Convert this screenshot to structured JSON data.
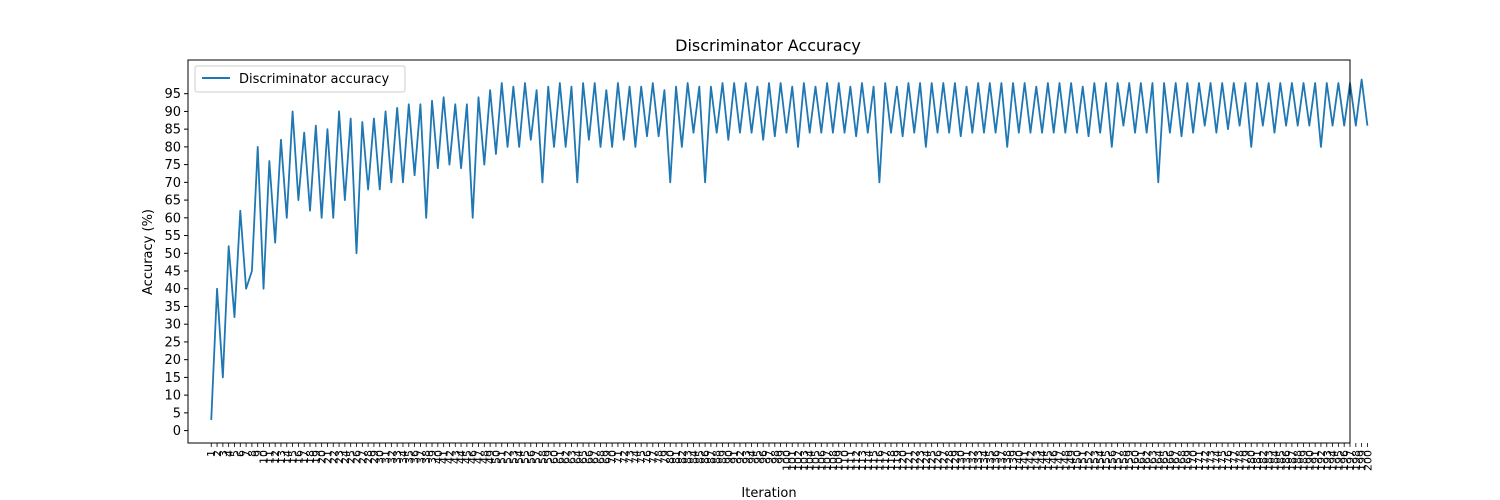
{
  "chart_data": {
    "type": "line",
    "title": "Discriminator Accuracy",
    "xlabel": "Iteration",
    "ylabel": "Accuracy (%)",
    "ylim": [
      -3.5,
      104.5
    ],
    "xlim": [
      -4,
      196
    ],
    "grid": false,
    "legend_position": "top-left",
    "yticks": [
      0,
      5,
      10,
      15,
      20,
      25,
      30,
      35,
      40,
      45,
      50,
      55,
      60,
      65,
      70,
      75,
      80,
      85,
      90,
      95
    ],
    "x_tick_labels_note": "one tick per iteration, labels overlap",
    "series": [
      {
        "name": "Discriminator accuracy",
        "color": "#1f77b4",
        "x": [
          0,
          1,
          2,
          3,
          4,
          5,
          6,
          7,
          8,
          9,
          10,
          11,
          12,
          13,
          14,
          15,
          16,
          17,
          18,
          19,
          20,
          21,
          22,
          23,
          24,
          25,
          26,
          27,
          28,
          29,
          30,
          31,
          32,
          33,
          34,
          35,
          36,
          37,
          38,
          39,
          40,
          41,
          42,
          43,
          44,
          45,
          46,
          47,
          48,
          49,
          50,
          51,
          52,
          53,
          54,
          55,
          56,
          57,
          58,
          59,
          60,
          61,
          62,
          63,
          64,
          65,
          66,
          67,
          68,
          69,
          70,
          71,
          72,
          73,
          74,
          75,
          76,
          77,
          78,
          79,
          80,
          81,
          82,
          83,
          84,
          85,
          86,
          87,
          88,
          89,
          90,
          91,
          92,
          93,
          94,
          95,
          96,
          97,
          98,
          99,
          100,
          101,
          102,
          103,
          104,
          105,
          106,
          107,
          108,
          109,
          110,
          111,
          112,
          113,
          114,
          115,
          116,
          117,
          118,
          119,
          120,
          121,
          122,
          123,
          124,
          125,
          126,
          127,
          128,
          129,
          130,
          131,
          132,
          133,
          134,
          135,
          136,
          137,
          138,
          139,
          140,
          141,
          142,
          143,
          144,
          145,
          146,
          147,
          148,
          149,
          150,
          151,
          152,
          153,
          154,
          155,
          156,
          157,
          158,
          159,
          160,
          161,
          162,
          163,
          164,
          165,
          166,
          167,
          168,
          169,
          170,
          171,
          172,
          173,
          174,
          175,
          176,
          177,
          178,
          179,
          180,
          181,
          182,
          183,
          184,
          185,
          186,
          187,
          188,
          189,
          190,
          191,
          192,
          193,
          194,
          195,
          196,
          197,
          198,
          199
        ],
        "values": [
          3,
          40,
          15,
          52,
          32,
          62,
          40,
          45,
          80,
          40,
          76,
          53,
          82,
          60,
          90,
          65,
          84,
          62,
          86,
          60,
          85,
          60,
          90,
          65,
          88,
          50,
          87,
          68,
          88,
          68,
          90,
          70,
          91,
          70,
          92,
          72,
          92,
          60,
          93,
          74,
          94,
          75,
          92,
          74,
          92,
          60,
          94,
          75,
          96,
          78,
          98,
          80,
          97,
          80,
          98,
          82,
          96,
          70,
          97,
          80,
          98,
          80,
          97,
          70,
          98,
          82,
          98,
          80,
          96,
          80,
          98,
          82,
          97,
          80,
          97,
          83,
          98,
          83,
          96,
          70,
          97,
          80,
          98,
          84,
          97,
          70,
          97,
          84,
          98,
          82,
          98,
          84,
          98,
          84,
          97,
          82,
          98,
          83,
          98,
          84,
          97,
          80,
          98,
          84,
          97,
          84,
          98,
          84,
          98,
          84,
          97,
          83,
          98,
          84,
          97,
          70,
          98,
          84,
          97,
          83,
          98,
          84,
          98,
          80,
          98,
          84,
          98,
          84,
          98,
          83,
          97,
          84,
          98,
          84,
          98,
          84,
          98,
          80,
          98,
          84,
          98,
          84,
          97,
          84,
          98,
          84,
          98,
          84,
          98,
          84,
          97,
          83,
          98,
          84,
          98,
          80,
          98,
          86,
          98,
          84,
          98,
          84,
          98,
          70,
          98,
          84,
          98,
          83,
          98,
          84,
          98,
          86,
          98,
          84,
          98,
          85,
          98,
          86,
          98,
          80,
          98,
          86,
          98,
          84,
          98,
          86,
          98,
          86,
          98,
          86,
          98,
          80,
          98,
          86,
          98,
          86,
          98,
          86,
          99,
          86
        ]
      }
    ]
  }
}
